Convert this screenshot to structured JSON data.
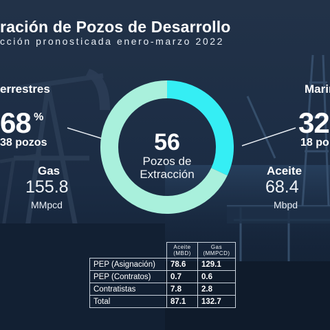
{
  "header": {
    "title": "ración de Pozos de Desarrollo",
    "subtitle": "cción pronosticada enero-marzo 2022"
  },
  "colors": {
    "background": "#16263c",
    "onshore_segment": "#a9f0dc",
    "offshore_segment": "#35eef4"
  },
  "chart_data": {
    "type": "pie",
    "center": {
      "value": "56",
      "label": "Pozos de Extracción"
    },
    "slices": [
      {
        "name": "errestres",
        "value": 68,
        "wells": "38 pozos"
      },
      {
        "name": "Marin",
        "value": 32,
        "wells": "18 po"
      }
    ]
  },
  "onshore": {
    "label": "errestres",
    "pct": "68",
    "pct_sign": "%",
    "wells": "38 pozos",
    "metric_label": "Gas",
    "metric_value": "155.8",
    "metric_unit": "MMpcd"
  },
  "offshore": {
    "label": "Marin",
    "pct": "32",
    "wells": "18 po",
    "metric_label": "Aceite",
    "metric_value": "68.4",
    "metric_unit": "Mbpd"
  },
  "table": {
    "headers": [
      {
        "line1": "Aceite",
        "line2": "(MBD)"
      },
      {
        "line1": "Gas",
        "line2": "(MMPCD)"
      }
    ],
    "rows": [
      {
        "name": "PEP (Asignación)",
        "aceite": "78.6",
        "gas": "129.1"
      },
      {
        "name": "PEP (Contratos)",
        "aceite": "0.7",
        "gas": "0.6"
      },
      {
        "name": "Contratistas",
        "aceite": "7.8",
        "gas": "2.8"
      },
      {
        "name": "Total",
        "aceite": "87.1",
        "gas": "132.7"
      }
    ]
  }
}
